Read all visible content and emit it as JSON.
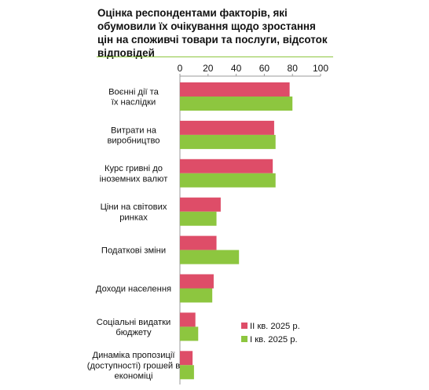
{
  "title": "Оцінка респондентами факторів, які обумовили їх очікування щодо зростання  цін на споживчі товари та послуги, відсоток відповідей",
  "colors": {
    "series_q2": "#de4d68",
    "series_q1": "#8dc63f",
    "rule": "#8dc63f",
    "axis": "#9a9a9a"
  },
  "chart_data": {
    "type": "bar",
    "orientation": "horizontal",
    "title": "Оцінка респондентами факторів, які обумовили їх очікування щодо зростання  цін на споживчі товари та послуги, відсоток відповідей",
    "categories": [
      [
        "Воєнні дії та",
        "їх наслідки"
      ],
      [
        "Витрати на",
        "виробництво"
      ],
      [
        "Курс гривні до",
        "іноземних валют"
      ],
      [
        "Ціни на світових",
        "ринках"
      ],
      [
        "Податкові зміни"
      ],
      [
        "Доходи населення"
      ],
      [
        "Соціальні видатки",
        "бюджету"
      ],
      [
        "Динаміка пропозиції",
        "(доступності) грошей в",
        "економіці"
      ]
    ],
    "xlim": [
      0,
      100
    ],
    "xticks": [
      0,
      20,
      40,
      60,
      80,
      100
    ],
    "axis_position": "top",
    "grid": false,
    "legend_position": "bottom-right",
    "series": [
      {
        "name": "ІІ кв. 2025 р.",
        "color": "#de4d68",
        "values": [
          78,
          67,
          66,
          29,
          26,
          24,
          11,
          9
        ]
      },
      {
        "name": "І кв. 2025 р.",
        "color": "#8dc63f",
        "values": [
          80,
          68,
          68,
          26,
          42,
          23,
          13,
          10
        ]
      }
    ]
  }
}
